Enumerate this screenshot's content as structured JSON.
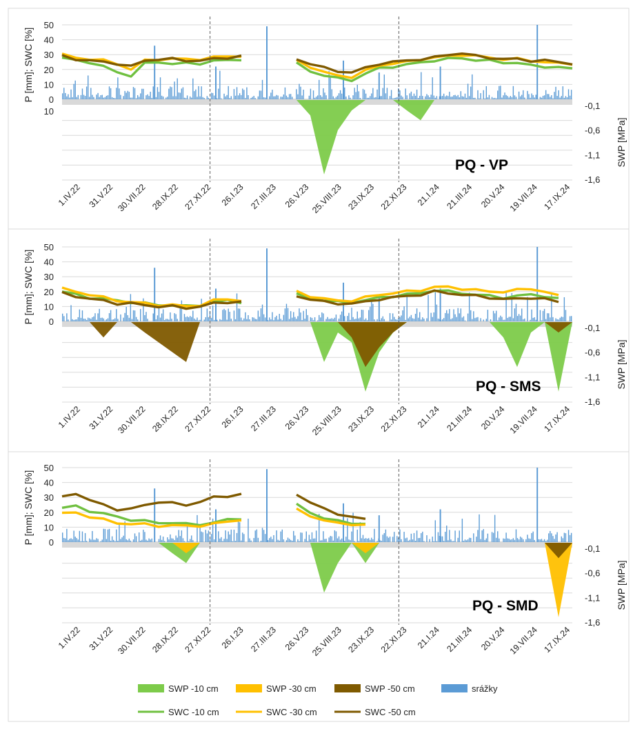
{
  "colors": {
    "swp10": "#7DCB4A",
    "swp30": "#FFC000",
    "swp50": "#7F5A00",
    "rain": "#5B9BD5",
    "swc10": "#70C040",
    "swc30": "#FFC000",
    "swc50": "#7F5A00",
    "band": "#D9D9D9",
    "grid": "#D9D9D9",
    "divider": "#595959"
  },
  "x_tick_labels": [
    "1.IV.22",
    "31.V.22",
    "30.VII.22",
    "28.IX.22",
    "27.XI.22",
    "26.I.23",
    "27.III.23",
    "26.V.23",
    "25.VIII.23",
    "23.IX.23",
    "22.XI.23",
    "21.I.24",
    "21.III.24",
    "20.V.24",
    "19.VII.24",
    "17.IX.24"
  ],
  "legend": {
    "swp10": "SWP -10 cm",
    "swp30": "SWP -30 cm",
    "swp50": "SWP -50 cm",
    "rain": "srážky",
    "swc10": "SWC -10 cm",
    "swc30": "SWC -30 cm",
    "swc50": "SWC -50 cm"
  },
  "chart_data": [
    {
      "type": "line",
      "title": "PQ - VP",
      "ylabel": "P [mm]; SWC [%]",
      "y2label": "SWP [MPa]",
      "ylim": [
        0,
        50
      ],
      "yticks": [
        "0",
        "10",
        "20",
        "30",
        "40",
        "50"
      ],
      "y_below_axis_label": "10",
      "y2ticks": [
        "-0,1",
        "-0,6",
        "-1,1",
        "-1,6"
      ],
      "y2lim": [
        -1.6,
        -0.1
      ],
      "x": {
        "start": "2022-04-01",
        "end": "2024-10-15",
        "ticks": [
          "1.IV.22",
          "31.V.22",
          "30.VII.22",
          "28.IX.22",
          "27.XI.22",
          "26.I.23",
          "27.III.23",
          "26.V.23",
          "25.VIII.23",
          "23.IX.23",
          "22.XI.23",
          "21.I.24",
          "21.III.24",
          "20.V.24",
          "19.VII.24",
          "17.IX.24"
        ]
      },
      "dividers_after": [
        "27.XI.22",
        "22.XI.23"
      ],
      "swc_series": [
        {
          "name": "SWC -10 cm",
          "values": [
            28,
            26,
            25,
            22,
            18,
            16,
            24,
            25,
            24,
            24,
            24,
            26,
            26,
            27,
            null,
            null,
            null,
            24,
            19,
            16,
            14,
            13,
            17,
            21,
            22,
            23,
            25,
            26,
            27,
            28,
            26,
            26,
            25,
            24,
            23,
            22,
            21,
            21
          ],
          "spikes": [
            [
              0.05,
              3
            ],
            [
              0.2,
              4
            ],
            [
              0.38,
              4
            ],
            [
              0.55,
              5
            ],
            [
              0.72,
              6
            ],
            [
              0.8,
              5
            ],
            [
              0.9,
              7
            ]
          ]
        },
        {
          "name": "SWC -30 cm",
          "values": [
            30,
            28,
            27,
            26,
            24,
            20,
            26,
            27,
            27,
            27,
            27,
            28,
            29,
            29,
            null,
            null,
            null,
            26,
            22,
            18,
            16,
            15,
            19,
            23,
            24,
            25,
            27,
            28,
            29,
            30,
            29,
            28,
            27,
            27,
            26,
            25,
            24,
            24
          ],
          "spikes": [
            [
              0.05,
              4
            ],
            [
              0.2,
              5
            ],
            [
              0.38,
              4
            ],
            [
              0.55,
              5
            ],
            [
              0.72,
              6
            ],
            [
              0.8,
              5
            ],
            [
              0.9,
              8
            ]
          ]
        },
        {
          "name": "SWC -50 cm",
          "values": [
            29,
            27,
            26,
            25,
            24,
            22,
            26,
            27,
            27,
            26,
            26,
            27,
            28,
            29,
            null,
            null,
            null,
            27,
            24,
            21,
            19,
            18,
            21,
            24,
            25,
            26,
            27,
            28,
            30,
            31,
            29,
            28,
            27,
            27,
            26,
            26,
            25,
            24
          ],
          "spikes": [
            [
              0.05,
              5
            ],
            [
              0.2,
              5
            ],
            [
              0.38,
              6
            ],
            [
              0.55,
              6
            ],
            [
              0.72,
              8
            ],
            [
              0.8,
              6
            ],
            [
              0.9,
              10
            ]
          ]
        }
      ],
      "swp_series": [
        {
          "name": "SWP -10 cm",
          "values": [
            -0.1,
            -0.1,
            -0.1,
            -0.1,
            -0.1,
            -0.1,
            -0.1,
            -0.1,
            -0.1,
            -0.1,
            -0.1,
            -0.1,
            -0.1,
            -0.1,
            -0.1,
            -0.1,
            -0.1,
            -0.1,
            -0.3,
            -1.5,
            -0.6,
            -0.2,
            -0.1,
            -0.1,
            -0.1,
            -0.2,
            -0.4,
            -0.1,
            -0.1,
            -0.1,
            -0.1,
            -0.1,
            -0.1,
            -0.1,
            -0.1,
            -0.1,
            -0.1,
            -0.1
          ]
        },
        {
          "name": "SWP -30 cm",
          "values": []
        },
        {
          "name": "SWP -50 cm",
          "values": []
        }
      ],
      "rain_peaks": [
        {
          "x": 0.4,
          "v": 49
        },
        {
          "x": 0.93,
          "v": 50
        },
        {
          "x": 0.18,
          "v": 36
        },
        {
          "x": 0.3,
          "v": 22
        },
        {
          "x": 0.55,
          "v": 26
        },
        {
          "x": 0.62,
          "v": 18
        },
        {
          "x": 0.74,
          "v": 22
        }
      ]
    },
    {
      "type": "line",
      "title": "PQ - SMS",
      "ylabel": "P [mm]; SWC [%]",
      "y2label": "SWP [MPa]",
      "ylim": [
        0,
        50
      ],
      "yticks": [
        "0",
        "10",
        "20",
        "30",
        "40",
        "50"
      ],
      "y2ticks": [
        "-0,1",
        "-0,6",
        "-1,1",
        "-1,6"
      ],
      "y2lim": [
        -1.6,
        -0.1
      ],
      "dividers_after": [
        "27.XI.22",
        "22.XI.23"
      ],
      "swc_series": [
        {
          "name": "SWC -10 cm",
          "values": [
            20,
            18,
            16,
            15,
            14,
            13,
            12,
            11,
            11,
            10,
            11,
            13,
            14,
            13,
            null,
            null,
            null,
            18,
            16,
            14,
            13,
            13,
            14,
            16,
            17,
            18,
            19,
            21,
            20,
            19,
            18,
            17,
            16,
            17,
            18,
            17,
            15,
            null
          ]
        },
        {
          "name": "SWC -30 cm",
          "values": [
            22,
            20,
            18,
            16,
            14,
            13,
            12,
            11,
            11,
            10,
            11,
            14,
            15,
            14,
            null,
            null,
            null,
            20,
            17,
            15,
            14,
            14,
            16,
            18,
            19,
            20,
            21,
            23,
            23,
            22,
            21,
            20,
            20,
            21,
            22,
            20,
            17,
            null
          ]
        },
        {
          "name": "SWC -50 cm",
          "values": [
            19,
            17,
            15,
            14,
            12,
            12,
            11,
            10,
            10,
            9,
            10,
            12,
            13,
            13,
            null,
            null,
            null,
            17,
            15,
            13,
            12,
            12,
            13,
            15,
            16,
            17,
            18,
            20,
            19,
            18,
            17,
            16,
            15,
            15,
            16,
            15,
            13,
            null
          ]
        }
      ],
      "swp_series": [
        {
          "name": "SWP -10 cm",
          "values": [
            -0.1,
            -0.1,
            -0.1,
            -0.1,
            -0.1,
            -0.1,
            -0.1,
            -0.1,
            -0.1,
            -0.1,
            -0.1,
            -0.1,
            -0.1,
            -0.1,
            -0.1,
            -0.1,
            -0.1,
            -0.1,
            -0.1,
            -0.8,
            -0.2,
            -0.4,
            -1.4,
            -0.6,
            -0.2,
            -0.1,
            -0.1,
            -0.1,
            -0.1,
            -0.1,
            -0.1,
            -0.1,
            -0.3,
            -0.9,
            -0.2,
            -0.1,
            -1.4,
            -0.1
          ]
        },
        {
          "name": "SWP -30 cm",
          "values": []
        },
        {
          "name": "SWP -50 cm",
          "values": [
            -0.1,
            -0.1,
            -0.1,
            -0.3,
            -0.1,
            -0.1,
            -0.2,
            -0.4,
            -0.6,
            -0.8,
            -0.1,
            -0.1,
            -0.1,
            -0.1,
            -0.1,
            -0.1,
            -0.1,
            -0.1,
            -0.1,
            -0.1,
            -0.1,
            -0.3,
            -0.9,
            -0.5,
            -0.2,
            -0.1,
            -0.1,
            -0.1,
            -0.1,
            -0.1,
            -0.1,
            -0.1,
            -0.1,
            -0.1,
            -0.1,
            -0.1,
            -0.2,
            -0.1
          ]
        }
      ],
      "rain_peaks": [
        {
          "x": 0.4,
          "v": 49
        },
        {
          "x": 0.93,
          "v": 50
        },
        {
          "x": 0.18,
          "v": 36
        },
        {
          "x": 0.3,
          "v": 22
        },
        {
          "x": 0.55,
          "v": 26
        },
        {
          "x": 0.62,
          "v": 18
        },
        {
          "x": 0.74,
          "v": 22
        }
      ]
    },
    {
      "type": "line",
      "title": "PQ - SMD",
      "ylabel": "P [mm]; SWC [%]",
      "y2label": "SWP [MPa]",
      "ylim": [
        0,
        50
      ],
      "yticks": [
        "0",
        "10",
        "20",
        "30",
        "40",
        "50"
      ],
      "y2ticks": [
        "-0,1",
        "-0,6",
        "-1,1",
        "-1,6"
      ],
      "y2lim": [
        -1.6,
        -0.1
      ],
      "dividers_after": [
        "27.XI.22",
        "22.XI.23"
      ],
      "swc_series": [
        {
          "name": "SWC -10 cm",
          "values": [
            23,
            24,
            21,
            19,
            17,
            15,
            14,
            13,
            13,
            12,
            12,
            13,
            15,
            16,
            null,
            null,
            null,
            25,
            20,
            16,
            14,
            13,
            12,
            null,
            null,
            null,
            null,
            null,
            null,
            null,
            null,
            null,
            null,
            null,
            null,
            null,
            null,
            null
          ]
        },
        {
          "name": "SWC -30 cm",
          "values": [
            19,
            20,
            17,
            15,
            13,
            12,
            12,
            11,
            11,
            11,
            11,
            12,
            14,
            15,
            null,
            null,
            null,
            22,
            18,
            14,
            13,
            12,
            11,
            null,
            null,
            null,
            null,
            null,
            null,
            null,
            null,
            null,
            null,
            null,
            null,
            null,
            null,
            null
          ]
        },
        {
          "name": "SWC -50 cm",
          "values": [
            30,
            33,
            28,
            25,
            22,
            22,
            25,
            27,
            26,
            25,
            27,
            30,
            31,
            32,
            null,
            null,
            null,
            32,
            27,
            22,
            19,
            17,
            15,
            null,
            null,
            null,
            null,
            null,
            null,
            null,
            null,
            null,
            null,
            null,
            null,
            null,
            null,
            null
          ]
        }
      ],
      "swp_series": [
        {
          "name": "SWP -10 cm",
          "values": [
            -0.1,
            -0.1,
            -0.1,
            -0.1,
            -0.1,
            -0.1,
            -0.1,
            -0.1,
            -0.2,
            -0.4,
            -0.1,
            -0.1,
            -0.1,
            -0.1,
            -0.1,
            -0.1,
            -0.1,
            -0.1,
            -0.1,
            -1.0,
            -0.4,
            -0.1,
            -0.4,
            -0.1,
            -0.1,
            -0.1,
            -0.1,
            -0.1,
            -0.1,
            -0.1,
            -0.1,
            -0.1,
            -0.1,
            -0.1,
            -0.1,
            -0.1,
            -0.1,
            -0.1
          ]
        },
        {
          "name": "SWP -30 cm",
          "values": [
            -0.1,
            -0.1,
            -0.1,
            -0.1,
            -0.1,
            -0.1,
            -0.1,
            -0.1,
            -0.1,
            -0.2,
            -0.1,
            -0.1,
            -0.1,
            -0.1,
            -0.1,
            -0.1,
            -0.1,
            -0.1,
            -0.1,
            -0.1,
            -0.1,
            -0.1,
            -0.2,
            -0.1,
            -0.1,
            -0.1,
            -0.1,
            -0.1,
            -0.1,
            -0.1,
            -0.1,
            -0.1,
            -0.1,
            -0.1,
            -0.1,
            -0.1,
            -1.5,
            -0.1
          ]
        },
        {
          "name": "SWP -50 cm",
          "values": [
            -0.1,
            -0.1,
            -0.1,
            -0.1,
            -0.1,
            -0.1,
            -0.1,
            -0.1,
            -0.1,
            -0.1,
            -0.1,
            -0.1,
            -0.1,
            -0.1,
            -0.1,
            -0.1,
            -0.1,
            -0.1,
            -0.1,
            -0.1,
            -0.1,
            -0.1,
            -0.1,
            -0.1,
            -0.1,
            -0.1,
            -0.1,
            -0.1,
            -0.1,
            -0.1,
            -0.1,
            -0.1,
            -0.1,
            -0.1,
            -0.1,
            -0.1,
            -0.3,
            -0.1
          ]
        }
      ],
      "rain_peaks": [
        {
          "x": 0.4,
          "v": 49
        },
        {
          "x": 0.93,
          "v": 50
        },
        {
          "x": 0.18,
          "v": 36
        },
        {
          "x": 0.3,
          "v": 22
        },
        {
          "x": 0.55,
          "v": 26
        },
        {
          "x": 0.62,
          "v": 18
        },
        {
          "x": 0.74,
          "v": 22
        }
      ]
    }
  ]
}
